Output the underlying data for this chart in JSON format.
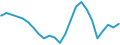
{
  "x": [
    0,
    1,
    2,
    3,
    4,
    5,
    6,
    7,
    8,
    9,
    10,
    11,
    12,
    13,
    14,
    15,
    16,
    17,
    18,
    19,
    20,
    21,
    22
  ],
  "y": [
    3.5,
    3.8,
    3.6,
    3.4,
    3.2,
    2.8,
    2.2,
    1.5,
    1.0,
    1.3,
    1.1,
    0.5,
    1.5,
    3.0,
    4.5,
    5.0,
    4.2,
    3.0,
    1.0,
    1.8,
    2.5,
    2.2,
    2.6
  ],
  "line_color": "#2b9fc9",
  "linewidth": 1.4,
  "background_color": "#ffffff"
}
